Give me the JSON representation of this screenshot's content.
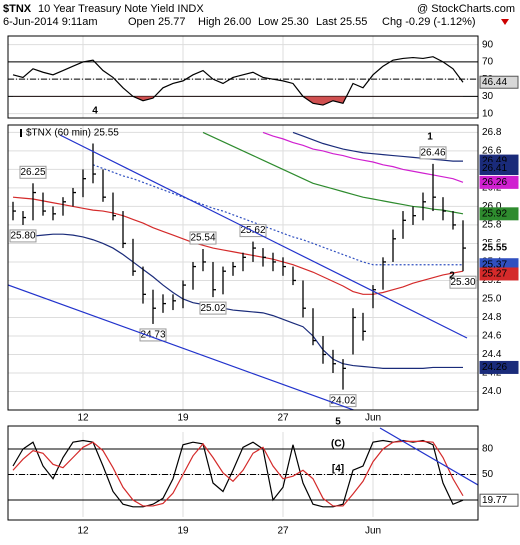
{
  "header": {
    "symbol": "$TNX",
    "name": "10 Year Treasury Note Yield INDX",
    "source": "@ StockCharts.com",
    "date": "6-Jun-2014 9:11am",
    "open": "Open 25.77",
    "high": "High 26.00",
    "low": "Low 25.30",
    "last": "Last 25.55",
    "change": "Chg -0.29 (-1.12%)"
  },
  "chart_data": [
    {
      "type": "line",
      "ylim": [
        5,
        100
      ],
      "yticks": [
        10,
        30,
        50,
        70,
        90
      ],
      "levels": [
        30,
        50,
        70
      ],
      "shade_below": 30,
      "annotation": "4",
      "value_label": 46.44,
      "series": [
        {
          "color": "#000000",
          "values": [
            55,
            52,
            62,
            58,
            55,
            60,
            65,
            70,
            72,
            60,
            52,
            40,
            30,
            25,
            28,
            40,
            45,
            48,
            55,
            60,
            50,
            45,
            52,
            55,
            58,
            52,
            50,
            48,
            45,
            30,
            22,
            20,
            25,
            22,
            45,
            40,
            55,
            65,
            72,
            74,
            75,
            74,
            76,
            70,
            62,
            46.44
          ]
        }
      ]
    },
    {
      "type": "ohlc",
      "name": "$TNX (60 min) 25.55",
      "color": "#000000",
      "grid": true,
      "categories": [
        null,
        null,
        null,
        null,
        null,
        null,
        null,
        "12",
        null,
        null,
        null,
        null,
        null,
        null,
        null,
        null,
        null,
        "19",
        null,
        null,
        null,
        null,
        null,
        null,
        null,
        null,
        null,
        "27",
        null,
        null,
        null,
        null,
        null,
        null,
        null,
        null,
        "Jun",
        null,
        null,
        null,
        null,
        null,
        null,
        null,
        null,
        null
      ],
      "ylim": [
        23.8,
        26.88
      ],
      "yticks": [
        {
          "value": 24,
          "label": "24.0"
        },
        24.2,
        24.4,
        24.6,
        24.8,
        {
          "value": 25,
          "label": "25.0"
        },
        25.2,
        25.4,
        25.6,
        25.8,
        {
          "value": 26,
          "label": "26.0"
        },
        26.2,
        26.4,
        26.6,
        26.8
      ],
      "high": [
        26.05,
        25.95,
        26.25,
        26.15,
        26.0,
        26.1,
        26.2,
        26.4,
        26.68,
        26.4,
        26.15,
        25.95,
        25.65,
        25.35,
        25.1,
        25.05,
        25.05,
        25.2,
        25.4,
        25.54,
        25.4,
        25.35,
        25.4,
        25.5,
        25.62,
        25.55,
        25.5,
        25.45,
        25.35,
        25.2,
        24.9,
        24.6,
        24.45,
        24.35,
        24.9,
        24.85,
        25.15,
        25.45,
        25.75,
        25.95,
        26.0,
        26.15,
        26.46,
        26.1,
        25.95,
        25.85
      ],
      "low": [
        25.85,
        25.8,
        25.85,
        25.9,
        25.85,
        25.9,
        26.0,
        26.1,
        26.25,
        26.05,
        25.85,
        25.55,
        25.25,
        24.95,
        24.73,
        24.85,
        24.88,
        24.9,
        25.1,
        25.3,
        25.02,
        25.05,
        25.25,
        25.3,
        25.4,
        25.35,
        25.3,
        25.25,
        25.15,
        24.8,
        24.5,
        24.3,
        24.2,
        24.02,
        24.4,
        24.55,
        24.9,
        25.1,
        25.4,
        25.65,
        25.8,
        25.85,
        25.95,
        25.85,
        25.75,
        25.3
      ],
      "close": [
        25.95,
        25.88,
        26.15,
        25.95,
        25.92,
        26.05,
        26.15,
        26.3,
        26.35,
        26.1,
        25.9,
        25.6,
        25.3,
        25.05,
        24.9,
        24.95,
        24.98,
        25.15,
        25.35,
        25.4,
        25.1,
        25.3,
        25.35,
        25.45,
        25.55,
        25.45,
        25.4,
        25.35,
        25.2,
        24.9,
        24.55,
        24.4,
        24.3,
        24.25,
        24.8,
        24.65,
        25.1,
        25.4,
        25.65,
        25.85,
        25.9,
        26.05,
        26.1,
        25.95,
        25.8,
        25.55
      ],
      "overlays": [
        {
          "color": "#d42a2a",
          "values": [
            26.1,
            26.09,
            26.08,
            26.06,
            26.04,
            26.02,
            26.0,
            25.98,
            25.96,
            25.95,
            25.93,
            25.9,
            25.86,
            25.82,
            25.77,
            25.73,
            25.69,
            25.65,
            25.61,
            25.58,
            25.55,
            25.53,
            25.51,
            25.49,
            25.47,
            25.45,
            25.43,
            25.4,
            25.37,
            25.33,
            25.29,
            25.24,
            25.19,
            25.14,
            25.08,
            25.05,
            25.05,
            25.07,
            25.1,
            25.13,
            25.17,
            25.2,
            25.23,
            25.26,
            25.28,
            25.3
          ]
        },
        {
          "color": "#1a2b7a",
          "values": [
            25.65,
            25.66,
            25.68,
            25.69,
            25.7,
            25.7,
            25.69,
            25.67,
            25.64,
            25.6,
            25.55,
            25.48,
            25.4,
            25.32,
            25.24,
            25.15,
            25.07,
            25.0,
            24.96,
            24.94,
            24.92,
            24.9,
            24.88,
            24.87,
            24.86,
            24.85,
            24.82,
            24.78,
            24.74,
            24.7,
            24.6,
            24.45,
            24.35,
            24.3,
            24.28,
            24.27,
            24.26,
            24.25,
            24.25,
            24.25,
            24.25,
            24.25,
            24.26,
            24.26,
            24.26,
            24.26
          ]
        },
        {
          "color": "#1a2b7a",
          "values": [
            null,
            null,
            null,
            null,
            null,
            null,
            null,
            null,
            null,
            null,
            null,
            null,
            null,
            null,
            null,
            null,
            null,
            null,
            null,
            null,
            null,
            null,
            null,
            null,
            null,
            null,
            null,
            null,
            26.8,
            26.76,
            26.72,
            26.68,
            26.65,
            26.62,
            26.6,
            26.58,
            26.57,
            26.56,
            26.55,
            26.54,
            26.53,
            26.52,
            26.51,
            26.5,
            26.49,
            26.49
          ]
        },
        {
          "color": "#2e8b2e",
          "values": [
            null,
            null,
            null,
            null,
            null,
            null,
            null,
            null,
            null,
            null,
            null,
            null,
            null,
            null,
            null,
            null,
            null,
            null,
            null,
            26.8,
            26.75,
            26.7,
            26.65,
            26.6,
            26.55,
            26.5,
            26.45,
            26.4,
            26.35,
            26.3,
            26.25,
            26.22,
            26.19,
            26.16,
            26.13,
            26.1,
            26.08,
            26.06,
            26.04,
            26.02,
            26.0,
            25.99,
            25.97,
            25.96,
            25.94,
            25.92
          ]
        },
        {
          "color": "#d020d0",
          "values": [
            null,
            null,
            null,
            null,
            null,
            null,
            null,
            null,
            null,
            null,
            null,
            null,
            null,
            null,
            null,
            null,
            null,
            null,
            null,
            null,
            null,
            null,
            null,
            null,
            null,
            26.8,
            26.76,
            26.73,
            26.69,
            26.66,
            26.62,
            26.6,
            26.57,
            26.55,
            26.52,
            26.5,
            26.48,
            26.45,
            26.43,
            26.4,
            26.38,
            26.36,
            26.34,
            26.32,
            26.3,
            26.26
          ]
        },
        {
          "color": "#3050c0",
          "dash": true,
          "values": [
            null,
            null,
            null,
            null,
            null,
            null,
            null,
            null,
            26.45,
            26.41,
            26.37,
            26.33,
            26.3,
            26.26,
            26.22,
            26.18,
            26.14,
            26.1,
            26.06,
            26.02,
            25.98,
            25.95,
            25.91,
            25.87,
            25.83,
            25.79,
            25.75,
            25.71,
            25.67,
            25.64,
            25.6,
            25.56,
            25.52,
            25.48,
            25.44,
            25.4,
            25.37,
            25.37,
            25.37,
            25.37,
            25.37,
            25.37,
            25.37,
            25.37,
            25.37,
            25.37
          ]
        }
      ],
      "callouts": [
        26.25,
        {
          "value": 25.8,
          "label": "25.80"
        },
        25.54,
        25.62,
        24.73,
        25.02,
        24.02,
        26.46,
        {
          "value": 25.3,
          "label": "25.30"
        }
      ],
      "end_labels": [
        26.49,
        26.41,
        26.26,
        25.92,
        25.55,
        25.37,
        25.27,
        24.26
      ],
      "annotations": [
        "1",
        "2",
        "5"
      ]
    },
    {
      "type": "line",
      "ylim": [
        0,
        100
      ],
      "yticks": [
        20,
        50,
        80
      ],
      "levels": [
        20,
        50,
        80
      ],
      "annotations": [
        "(C)",
        "[4]"
      ],
      "value_label": 19.77,
      "series": [
        {
          "color": "#000000",
          "values": [
            60,
            80,
            88,
            60,
            45,
            70,
            88,
            90,
            88,
            60,
            30,
            15,
            12,
            12,
            15,
            22,
            45,
            85,
            88,
            86,
            40,
            30,
            55,
            82,
            88,
            80,
            20,
            35,
            85,
            40,
            15,
            12,
            12,
            15,
            55,
            60,
            88,
            90,
            88,
            90,
            88,
            90,
            85,
            40,
            15,
            19.77
          ]
        },
        {
          "color": "#d42a2a",
          "values": [
            55,
            68,
            78,
            75,
            62,
            58,
            70,
            82,
            88,
            78,
            58,
            35,
            20,
            13,
            13,
            16,
            28,
            50,
            72,
            86,
            70,
            52,
            42,
            55,
            75,
            82,
            60,
            45,
            48,
            55,
            45,
            22,
            13,
            13,
            27,
            42,
            65,
            80,
            88,
            89,
            89,
            89,
            88,
            70,
            45,
            25
          ]
        }
      ]
    }
  ]
}
